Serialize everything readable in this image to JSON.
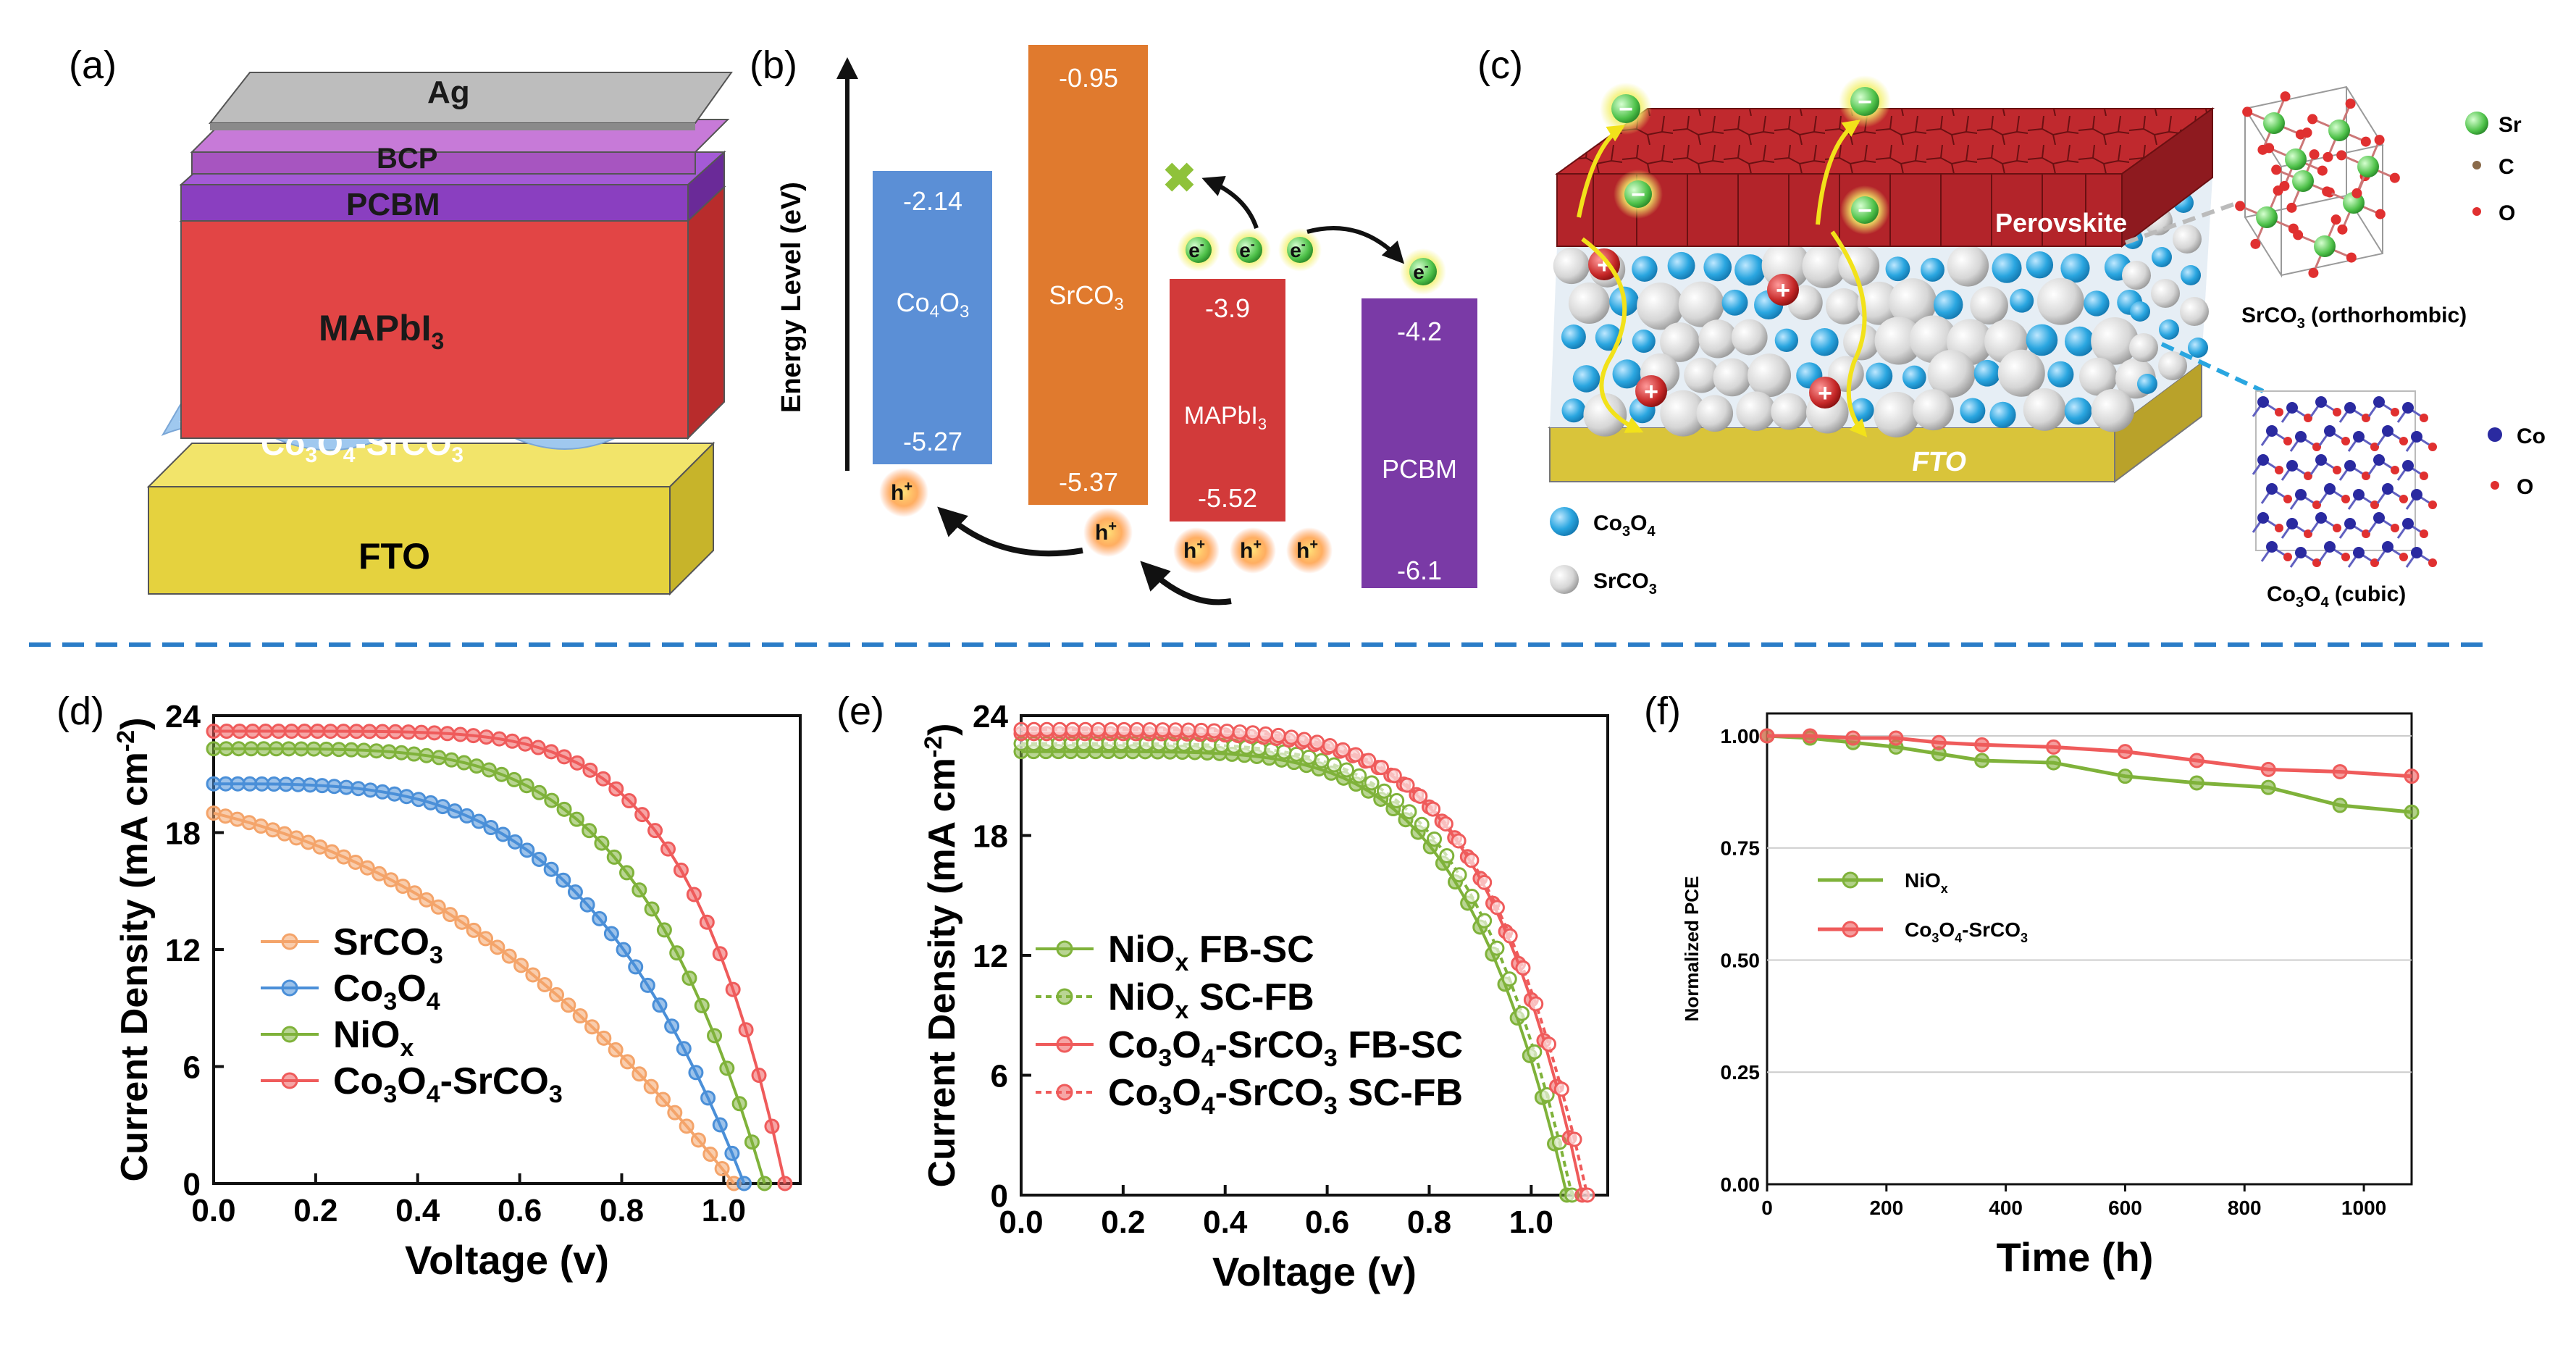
{
  "panels": {
    "a": {
      "label": "(a)",
      "layers": [
        "Ag",
        "BCP",
        "PCBM",
        "MAPbI",
        "3",
        "Co",
        "3",
        "O",
        "4",
        "-SrCO",
        "3",
        "FTO"
      ]
    },
    "b": {
      "label": "(b)",
      "axis_label": "Energy Level (eV)",
      "bands": [
        {
          "name_main": "Co",
          "name_sub1": "4",
          "name_mid": "O",
          "name_sub2": "3",
          "cb": "-2.14",
          "vb": "-5.27",
          "color": "#5b8fd6"
        },
        {
          "name_main": "SrCO",
          "name_sub1": "3",
          "cb": "-0.95",
          "vb": "-5.37",
          "color": "#e07a2e"
        },
        {
          "name_main": "MAPbI",
          "name_sub1": "3",
          "cb": "-3.9",
          "vb": "-5.52",
          "color": "#d23a3a"
        },
        {
          "name_main": "PCBM",
          "cb": "-4.2",
          "vb": "-6.1",
          "color": "#7a3aa6"
        }
      ],
      "electron": "e",
      "electron_sup": "-",
      "hole": "h",
      "hole_sup": "+",
      "cross": "✖"
    },
    "c": {
      "label": "(c)",
      "perovskite": "Perovskite",
      "fto": "FTO",
      "legend": [
        {
          "main": "Co",
          "sub1": "3",
          "mid": "O",
          "sub2": "4",
          "color": "#2aa6e0"
        },
        {
          "main": "SrCO",
          "sub1": "3",
          "color": "#d8d8d8"
        }
      ],
      "srco3_caption_main": "SrCO",
      "srco3_caption_sub": "3",
      "srco3_caption_rest": " (orthorhombic)",
      "co3o4_caption_main": "Co",
      "co3o4_caption_sub1": "3",
      "co3o4_caption_mid": "O",
      "co3o4_caption_sub2": "4",
      "co3o4_caption_rest": " (cubic)",
      "srco3_atoms": [
        {
          "symbol": "Sr",
          "color": "#3cbf4a"
        },
        {
          "symbol": "C",
          "color": "#8a6a4a"
        },
        {
          "symbol": "O",
          "color": "#e03030"
        }
      ],
      "co3o4_atoms": [
        {
          "symbol": "Co",
          "color": "#2a2aa0"
        },
        {
          "symbol": "O",
          "color": "#e03030"
        }
      ],
      "minus": "−",
      "plus": "+"
    },
    "d": {
      "label": "(d)"
    },
    "e": {
      "label": "(e)"
    },
    "f": {
      "label": "(f)"
    }
  },
  "chart_data": [
    {
      "id": "d",
      "type": "line",
      "xlabel": "Voltage (v)",
      "ylabel": "Current Density (mA cm",
      "ylabel_sup": "-2",
      "ylabel_end": ")",
      "xlim": [
        0,
        1.15
      ],
      "ylim": [
        0,
        24
      ],
      "xticks": [
        "0.0",
        "0.2",
        "0.4",
        "0.6",
        "0.8",
        "1.0"
      ],
      "yticks": [
        "0",
        "6",
        "12",
        "18",
        "24"
      ],
      "legend": [
        {
          "main": "SrCO",
          "sub": "3",
          "rest": ""
        },
        {
          "main": "Co",
          "sub": "3",
          "mid": "O",
          "sub2": "4"
        },
        {
          "main": "NiO",
          "sub": "x",
          "rest": ""
        },
        {
          "main": "Co",
          "sub": "3",
          "mid": "O",
          "sub2": "4",
          "rest": "-SrCO",
          "sub3": "3"
        }
      ],
      "series": [
        {
          "name": "SrCO3",
          "color": "#f4a46a",
          "jsc": 19.0,
          "voc": 1.02,
          "shape": "linear"
        },
        {
          "name": "Co3O4",
          "color": "#4a8fd8",
          "jsc": 20.5,
          "voc": 1.04,
          "shape": "knee",
          "knee": 0.72
        },
        {
          "name": "NiOx",
          "color": "#7fb23a",
          "jsc": 22.3,
          "voc": 1.08,
          "shape": "knee",
          "knee": 0.82
        },
        {
          "name": "Co3O4-SrCO3",
          "color": "#ef5b5b",
          "jsc": 23.2,
          "voc": 1.12,
          "shape": "knee",
          "knee": 0.92
        }
      ]
    },
    {
      "id": "e",
      "type": "line",
      "xlabel": "Voltage (v)",
      "ylabel": "Current Density (mA cm",
      "ylabel_sup": "-2",
      "ylabel_end": ")",
      "xlim": [
        0,
        1.15
      ],
      "ylim": [
        0,
        24
      ],
      "xticks": [
        "0.0",
        "0.2",
        "0.4",
        "0.6",
        "0.8",
        "1.0"
      ],
      "yticks": [
        "0",
        "6",
        "12",
        "18",
        "24"
      ],
      "legend": [
        {
          "main": "NiO",
          "sub": "x",
          "rest": " FB-SC",
          "dash": false
        },
        {
          "main": "NiO",
          "sub": "x",
          "rest": " SC-FB",
          "dash": true
        },
        {
          "main": "Co",
          "sub": "3",
          "mid": "O",
          "sub2": "4",
          "rest": "-SrCO",
          "sub3": "3",
          "tail": " FB-SC",
          "dash": false
        },
        {
          "main": "Co",
          "sub": "3",
          "mid": "O",
          "sub2": "4",
          "rest": "-SrCO",
          "sub3": "3",
          "tail": " SC-FB",
          "dash": true
        }
      ],
      "series": [
        {
          "name": "NiOx FB-SC",
          "color": "#7fb23a",
          "jsc": 22.2,
          "voc": 1.07,
          "knee": 0.86,
          "dash": false
        },
        {
          "name": "NiOx SC-FB",
          "color": "#7fb23a",
          "jsc": 22.6,
          "voc": 1.08,
          "knee": 0.87,
          "dash": true
        },
        {
          "name": "Co3O4-SrCO3 FB-SC",
          "color": "#ef5b5b",
          "jsc": 23.1,
          "voc": 1.1,
          "knee": 0.9,
          "dash": false
        },
        {
          "name": "Co3O4-SrCO3 SC-FB",
          "color": "#ef5b5b",
          "jsc": 23.3,
          "voc": 1.11,
          "knee": 0.9,
          "dash": true
        }
      ]
    },
    {
      "id": "f",
      "type": "line",
      "xlabel": "Time (h)",
      "ylabel": "Normalized PCE",
      "xlim": [
        0,
        1080
      ],
      "ylim": [
        0,
        1.05
      ],
      "xticks": [
        "0",
        "200",
        "400",
        "600",
        "800",
        "1000"
      ],
      "xtick_values": [
        0,
        200,
        400,
        600,
        800,
        1000
      ],
      "yticks": [
        "0.00",
        "0.25",
        "0.50",
        "0.75",
        "1.00"
      ],
      "ytick_values": [
        0,
        0.25,
        0.5,
        0.75,
        1.0
      ],
      "legend": [
        {
          "main": "NiO",
          "sub": "x"
        },
        {
          "main": "Co",
          "sub": "3",
          "mid": "O",
          "sub2": "4",
          "rest": "-SrCO",
          "sub3": "3"
        }
      ],
      "series": [
        {
          "name": "NiOx",
          "color": "#7fb23a",
          "x": [
            0,
            72,
            144,
            216,
            288,
            360,
            480,
            600,
            720,
            840,
            960,
            1080
          ],
          "y": [
            1.0,
            0.995,
            0.985,
            0.975,
            0.96,
            0.945,
            0.94,
            0.91,
            0.895,
            0.885,
            0.845,
            0.83
          ]
        },
        {
          "name": "Co3O4-SrCO3",
          "color": "#ef5b5b",
          "x": [
            0,
            72,
            144,
            216,
            288,
            360,
            480,
            600,
            720,
            840,
            960,
            1080
          ],
          "y": [
            1.0,
            1.0,
            0.995,
            0.995,
            0.985,
            0.98,
            0.975,
            0.965,
            0.945,
            0.925,
            0.92,
            0.91
          ]
        }
      ]
    }
  ]
}
